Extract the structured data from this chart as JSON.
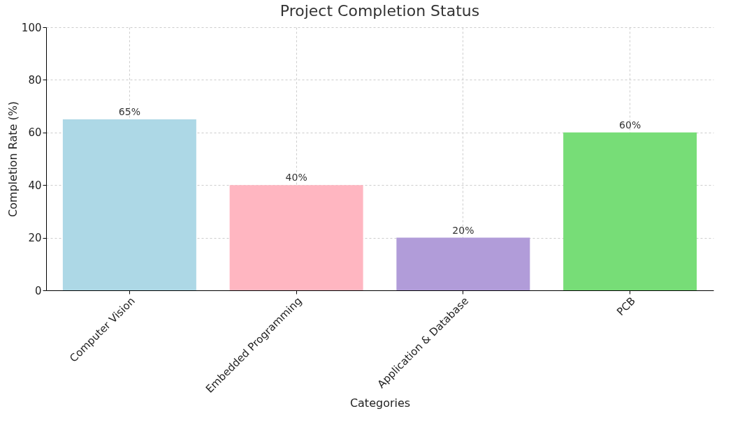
{
  "chart_data": {
    "type": "bar",
    "title": "Project Completion Status",
    "xlabel": "Categories",
    "ylabel": "Completion Rate (%)",
    "categories": [
      "Computer Vision",
      "Embedded Programming",
      "Application & Database",
      "PCB"
    ],
    "values": [
      65,
      40,
      20,
      60
    ],
    "colors": [
      "#add8e6",
      "#ffb6c1",
      "#b19cd9",
      "#77dd77"
    ],
    "value_labels": [
      "65%",
      "40%",
      "20%",
      "60%"
    ],
    "ylim": [
      0,
      100
    ],
    "yticks": [
      0,
      20,
      40,
      60,
      80,
      100
    ],
    "grid": true,
    "legend": false
  }
}
